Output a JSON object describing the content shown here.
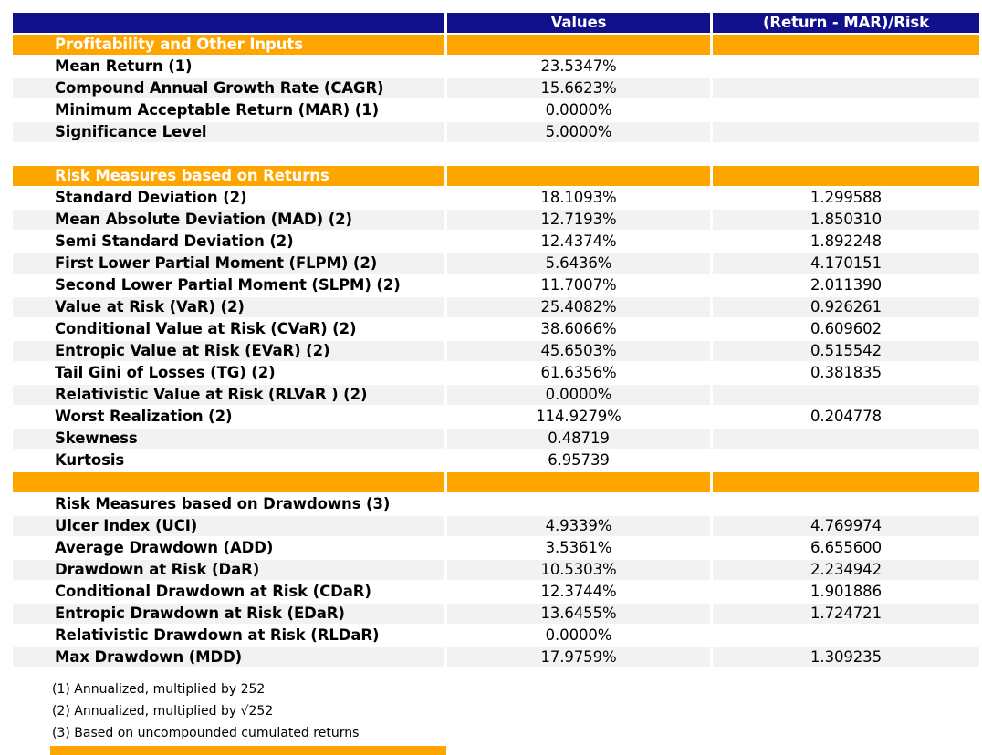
{
  "colors": {
    "header_bg": "#10108C",
    "section_bg": "#FFA500",
    "stripe_bg": "#F2F2F2",
    "header_text": "#ffffff",
    "body_text": "#000000"
  },
  "chart_data": {
    "type": "table",
    "columns": [
      "",
      "Values",
      "(Return - MAR)/Risk"
    ],
    "rows": [
      {
        "type": "section",
        "shade": false,
        "label": "Profitability and Other Inputs",
        "value": "",
        "ratio": ""
      },
      {
        "type": "data",
        "shade": false,
        "label": "Mean Return (1)",
        "value": "23.5347%",
        "ratio": ""
      },
      {
        "type": "data",
        "shade": true,
        "label": "Compound Annual Growth Rate (CAGR)",
        "value": "15.6623%",
        "ratio": ""
      },
      {
        "type": "data",
        "shade": false,
        "label": "Minimum Acceptable Return (MAR) (1)",
        "value": "0.0000%",
        "ratio": ""
      },
      {
        "type": "data",
        "shade": true,
        "label": "Significance Level",
        "value": "5.0000%",
        "ratio": ""
      },
      {
        "type": "blank",
        "shade": false,
        "label": "",
        "value": "",
        "ratio": ""
      },
      {
        "type": "section",
        "shade": false,
        "label": "Risk Measures based on Returns",
        "value": "",
        "ratio": ""
      },
      {
        "type": "data",
        "shade": false,
        "label": "Standard Deviation (2)",
        "value": "18.1093%",
        "ratio": "1.299588"
      },
      {
        "type": "data",
        "shade": true,
        "label": "Mean Absolute Deviation (MAD) (2)",
        "value": "12.7193%",
        "ratio": "1.850310"
      },
      {
        "type": "data",
        "shade": false,
        "label": "Semi Standard Deviation (2)",
        "value": "12.4374%",
        "ratio": "1.892248"
      },
      {
        "type": "data",
        "shade": true,
        "label": "First Lower Partial Moment (FLPM) (2)",
        "value": "5.6436%",
        "ratio": "4.170151"
      },
      {
        "type": "data",
        "shade": false,
        "label": "Second Lower Partial Moment (SLPM) (2)",
        "value": "11.7007%",
        "ratio": "2.011390"
      },
      {
        "type": "data",
        "shade": true,
        "label": "Value at Risk (VaR) (2)",
        "value": "25.4082%",
        "ratio": "0.926261"
      },
      {
        "type": "data",
        "shade": false,
        "label": "Conditional Value at Risk (CVaR) (2)",
        "value": "38.6066%",
        "ratio": "0.609602"
      },
      {
        "type": "data",
        "shade": true,
        "label": "Entropic Value at Risk (EVaR) (2)",
        "value": "45.6503%",
        "ratio": "0.515542"
      },
      {
        "type": "data",
        "shade": false,
        "label": "Tail Gini of Losses (TG) (2)",
        "value": "61.6356%",
        "ratio": "0.381835"
      },
      {
        "type": "data",
        "shade": true,
        "label": "Relativistic Value at Risk (RLVaR ) (2)",
        "value": "0.0000%",
        "ratio": ""
      },
      {
        "type": "data",
        "shade": false,
        "label": "Worst Realization (2)",
        "value": "114.9279%",
        "ratio": "0.204778"
      },
      {
        "type": "data",
        "shade": true,
        "label": "Skewness",
        "value": "0.48719",
        "ratio": ""
      },
      {
        "type": "data",
        "shade": false,
        "label": "Kurtosis",
        "value": "6.95739",
        "ratio": ""
      },
      {
        "type": "section",
        "shade": false,
        "label": "",
        "value": "",
        "ratio": ""
      },
      {
        "type": "subheader",
        "shade": false,
        "label": "Risk Measures based on Drawdowns (3)",
        "value": "",
        "ratio": ""
      },
      {
        "type": "data",
        "shade": true,
        "label": "Ulcer Index (UCI)",
        "value": "4.9339%",
        "ratio": "4.769974"
      },
      {
        "type": "data",
        "shade": false,
        "label": "Average Drawdown (ADD)",
        "value": "3.5361%",
        "ratio": "6.655600"
      },
      {
        "type": "data",
        "shade": true,
        "label": "Drawdown at Risk (DaR)",
        "value": "10.5303%",
        "ratio": "2.234942"
      },
      {
        "type": "data",
        "shade": false,
        "label": "Conditional Drawdown at Risk (CDaR)",
        "value": "12.3744%",
        "ratio": "1.901886"
      },
      {
        "type": "data",
        "shade": true,
        "label": "Entropic Drawdown at Risk (EDaR)",
        "value": "13.6455%",
        "ratio": "1.724721"
      },
      {
        "type": "data",
        "shade": false,
        "label": "Relativistic Drawdown at Risk (RLDaR)",
        "value": "0.0000%",
        "ratio": ""
      },
      {
        "type": "data",
        "shade": true,
        "label": "Max Drawdown (MDD)",
        "value": "17.9759%",
        "ratio": "1.309235"
      }
    ],
    "footnotes": [
      "(1) Annualized, multiplied by 252",
      "(2) Annualized, multiplied by √252",
      "(3) Based on uncompounded cumulated returns"
    ]
  }
}
